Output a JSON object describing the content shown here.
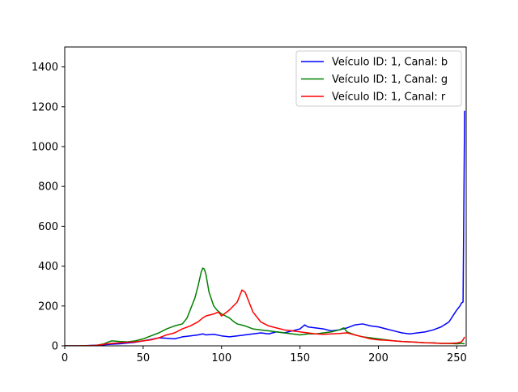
{
  "chart_data": {
    "type": "line",
    "title": "",
    "xlabel": "",
    "ylabel": "",
    "xlim": [
      0,
      256
    ],
    "ylim": [
      0,
      1500
    ],
    "xticks": [
      0,
      50,
      100,
      150,
      200,
      250
    ],
    "yticks": [
      0,
      200,
      400,
      600,
      800,
      1000,
      1200,
      1400
    ],
    "grid": false,
    "legend_position": "top-right",
    "series": [
      {
        "name": "Veículo ID: 1, Canal: b",
        "color": "#0000ff",
        "x": [
          0,
          10,
          20,
          25,
          30,
          35,
          40,
          45,
          50,
          55,
          60,
          65,
          70,
          75,
          80,
          85,
          88,
          90,
          95,
          100,
          105,
          110,
          115,
          120,
          125,
          130,
          135,
          140,
          145,
          150,
          153,
          155,
          160,
          165,
          170,
          175,
          180,
          185,
          190,
          195,
          200,
          205,
          210,
          215,
          220,
          225,
          230,
          235,
          240,
          245,
          250,
          252,
          253,
          254,
          255
        ],
        "y": [
          0,
          0,
          3,
          5,
          8,
          10,
          14,
          18,
          25,
          32,
          40,
          38,
          35,
          45,
          50,
          55,
          60,
          55,
          58,
          50,
          45,
          50,
          55,
          60,
          65,
          60,
          70,
          65,
          75,
          85,
          105,
          95,
          90,
          85,
          75,
          80,
          90,
          105,
          110,
          100,
          95,
          85,
          75,
          65,
          60,
          65,
          70,
          80,
          95,
          120,
          180,
          200,
          215,
          220,
          1180
        ]
      },
      {
        "name": "Veículo ID: 1, Canal: g",
        "color": "#008000",
        "x": [
          0,
          10,
          20,
          25,
          28,
          30,
          35,
          40,
          45,
          50,
          55,
          60,
          65,
          70,
          75,
          78,
          80,
          83,
          85,
          87,
          88,
          89,
          90,
          92,
          95,
          97,
          100,
          105,
          108,
          110,
          115,
          120,
          125,
          130,
          135,
          140,
          145,
          150,
          155,
          160,
          165,
          170,
          175,
          178,
          180,
          185,
          190,
          195,
          200,
          205,
          210,
          215,
          220,
          225,
          230,
          235,
          240,
          245,
          250,
          253,
          255
        ],
        "y": [
          0,
          0,
          2,
          10,
          20,
          25,
          22,
          20,
          25,
          35,
          50,
          65,
          85,
          100,
          110,
          140,
          180,
          240,
          300,
          370,
          390,
          385,
          360,
          270,
          200,
          180,
          160,
          140,
          120,
          110,
          100,
          85,
          80,
          75,
          70,
          65,
          60,
          55,
          60,
          60,
          65,
          70,
          80,
          90,
          70,
          55,
          45,
          40,
          35,
          30,
          25,
          22,
          20,
          18,
          15,
          15,
          12,
          12,
          10,
          12,
          10
        ]
      },
      {
        "name": "Veículo ID: 1, Canal: r",
        "color": "#ff0000",
        "x": [
          0,
          10,
          20,
          25,
          30,
          35,
          40,
          45,
          50,
          55,
          60,
          65,
          70,
          75,
          80,
          85,
          88,
          90,
          95,
          98,
          100,
          105,
          110,
          112,
          113,
          115,
          117,
          120,
          125,
          130,
          135,
          140,
          145,
          150,
          155,
          160,
          165,
          170,
          175,
          180,
          185,
          190,
          195,
          200,
          205,
          210,
          215,
          220,
          225,
          230,
          235,
          240,
          245,
          250,
          253,
          254,
          255
        ],
        "y": [
          0,
          0,
          2,
          8,
          12,
          15,
          18,
          20,
          25,
          30,
          40,
          55,
          65,
          85,
          100,
          120,
          140,
          150,
          160,
          170,
          150,
          180,
          220,
          260,
          280,
          270,
          230,
          170,
          120,
          100,
          90,
          80,
          75,
          70,
          65,
          60,
          58,
          60,
          62,
          65,
          55,
          45,
          35,
          30,
          28,
          25,
          22,
          20,
          18,
          15,
          14,
          12,
          12,
          14,
          20,
          30,
          45
        ]
      }
    ]
  }
}
